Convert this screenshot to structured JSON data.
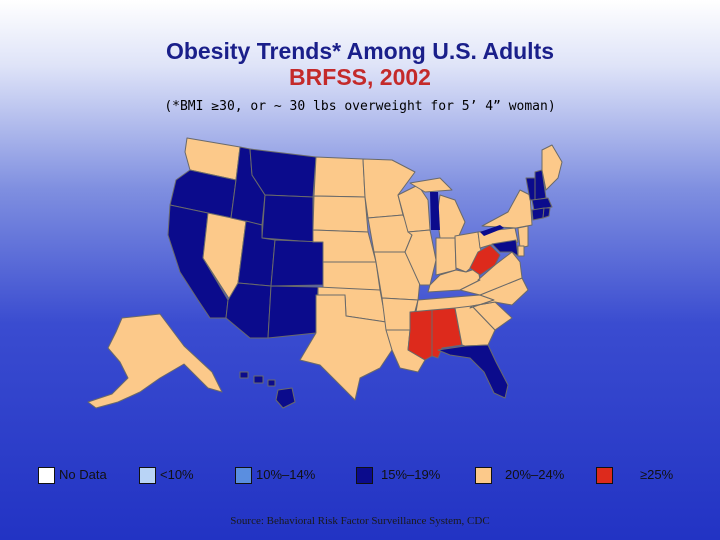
{
  "title": {
    "line1": "Obesity Trends* Among U.S. Adults",
    "line2": "BRFSS, 2002",
    "subtitle": "(*BMI ≥30, or ~ 30 lbs overweight for 5’ 4” woman)"
  },
  "colors": {
    "nodata": "#ffffff",
    "lt10": "#b9d4f6",
    "r10_14": "#5a8ee0",
    "r15_19": "#0b0b8c",
    "r20_24": "#fcc98a",
    "ge25": "#dd2a1c",
    "border": "#6a6a6a"
  },
  "legend": [
    {
      "label": "No Data",
      "color": "#ffffff"
    },
    {
      "label": "<10%",
      "color": "#b9d4f6"
    },
    {
      "label": "10%–14%",
      "color": "#5a8ee0"
    },
    {
      "label": "15%–19%",
      "color": "#0b0b8c"
    },
    {
      "label": "20%–24%",
      "color": "#fcc98a"
    },
    {
      "label": "≥25%",
      "color": "#dd2a1c"
    }
  ],
  "states": {
    "WA": "20-24",
    "OR": "15-19",
    "CA": "15-19",
    "NV": "20-24",
    "ID": "15-19",
    "MT": "15-19",
    "WY": "15-19",
    "UT": "15-19",
    "AZ": "15-19",
    "CO": "15-19",
    "NM": "15-19",
    "ND": "20-24",
    "SD": "20-24",
    "NE": "20-24",
    "KS": "20-24",
    "OK": "20-24",
    "TX": "20-24",
    "MN": "20-24",
    "IA": "20-24",
    "MO": "20-24",
    "AR": "20-24",
    "LA": "20-24",
    "WI": "20-24",
    "IL": "20-24",
    "MI": "20-24",
    "IN": "20-24",
    "OH": "20-24",
    "KY": "20-24",
    "TN": "20-24",
    "MS": "25+",
    "AL": "25+",
    "GA": "20-24",
    "FL": "15-19",
    "SC": "20-24",
    "NC": "20-24",
    "VA": "20-24",
    "WV": "25+",
    "PA": "20-24",
    "NY": "20-24",
    "VT": "15-19",
    "NH": "15-19",
    "ME": "20-24",
    "MA": "15-19",
    "RI": "15-19",
    "CT": "15-19",
    "NJ": "20-24",
    "DE": "20-24",
    "MD": "15-19",
    "AK": "20-24",
    "HI": "15-19"
  },
  "source": "Source: Behavioral Risk Factor Surveillance System, CDC"
}
